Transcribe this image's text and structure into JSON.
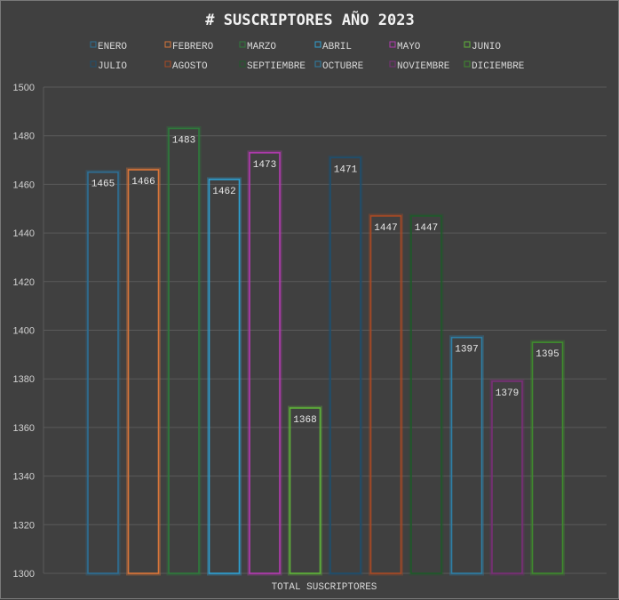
{
  "chart_data": {
    "type": "bar",
    "title": "# SUSCRIPTORES AÑO 2023",
    "xlabel": "TOTAL SUSCRIPTORES",
    "ylabel": "",
    "ylim": [
      1300,
      1500
    ],
    "yticks": [
      1300,
      1320,
      1340,
      1360,
      1380,
      1400,
      1420,
      1440,
      1460,
      1480,
      1500
    ],
    "grid": true,
    "legend_position": "top",
    "series": [
      {
        "name": "ENERO",
        "values": [
          1465
        ],
        "color": "#2e6f94"
      },
      {
        "name": "FEBRERO",
        "values": [
          1466
        ],
        "color": "#d9763a"
      },
      {
        "name": "MARZO",
        "values": [
          1483
        ],
        "color": "#2f7a3c"
      },
      {
        "name": "ABRIL",
        "values": [
          1462
        ],
        "color": "#2f9fd0"
      },
      {
        "name": "MAYO",
        "values": [
          1473
        ],
        "color": "#b23bb0"
      },
      {
        "name": "JUNIO",
        "values": [
          1368
        ],
        "color": "#5fb33a"
      },
      {
        "name": "JULIO",
        "values": [
          1471
        ],
        "color": "#1f4f6e"
      },
      {
        "name": "AGOSTO",
        "values": [
          1447
        ],
        "color": "#a84a25"
      },
      {
        "name": "SEPTIEMBRE",
        "values": [
          1447
        ],
        "color": "#1f5a2a"
      },
      {
        "name": "OCTUBRE",
        "values": [
          1397
        ],
        "color": "#2e7ea5"
      },
      {
        "name": "NOVIEMBRE",
        "values": [
          1379
        ],
        "color": "#7a2f78"
      },
      {
        "name": "DICIEMBRE",
        "values": [
          1395
        ],
        "color": "#3f8a2e"
      }
    ]
  }
}
